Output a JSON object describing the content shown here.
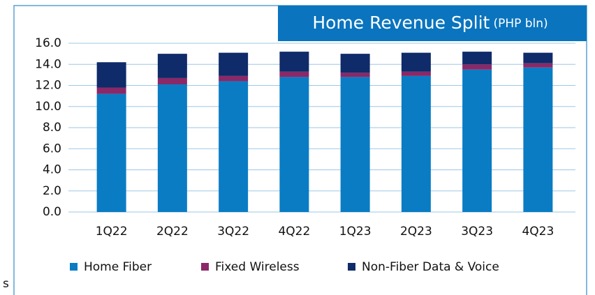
{
  "chart_data": {
    "type": "stacked_bar",
    "title": "Home Revenue Split",
    "subtitle": "(PHP bln)",
    "fragment": "s",
    "categories": [
      "1Q22",
      "2Q22",
      "3Q22",
      "4Q22",
      "1Q23",
      "2Q23",
      "3Q23",
      "4Q23"
    ],
    "series": [
      {
        "name": "Home Fiber",
        "color": "#0a7cc4",
        "values": [
          11.2,
          12.1,
          12.4,
          12.8,
          12.8,
          12.9,
          13.5,
          13.7
        ]
      },
      {
        "name": "Fixed Wireless",
        "color": "#8a2868",
        "values": [
          0.6,
          0.6,
          0.5,
          0.5,
          0.4,
          0.4,
          0.5,
          0.4
        ]
      },
      {
        "name": "Non-Fiber Data & Voice",
        "color": "#0f2b69",
        "values": [
          2.4,
          2.3,
          2.2,
          1.9,
          1.8,
          1.8,
          1.2,
          1.0
        ]
      }
    ],
    "ylim": [
      0,
      16
    ],
    "yticks": [
      {
        "value": 0,
        "label": "0.0"
      },
      {
        "value": 2,
        "label": "2.0"
      },
      {
        "value": 4,
        "label": "4.0"
      },
      {
        "value": 6,
        "label": "6.0"
      },
      {
        "value": 8,
        "label": "8.0"
      },
      {
        "value": 10,
        "label": "10.0"
      },
      {
        "value": 12,
        "label": "12.0"
      },
      {
        "value": 14,
        "label": "14.0"
      },
      {
        "value": 16,
        "label": "16.0"
      }
    ],
    "grid": true,
    "legend": "bottom"
  }
}
